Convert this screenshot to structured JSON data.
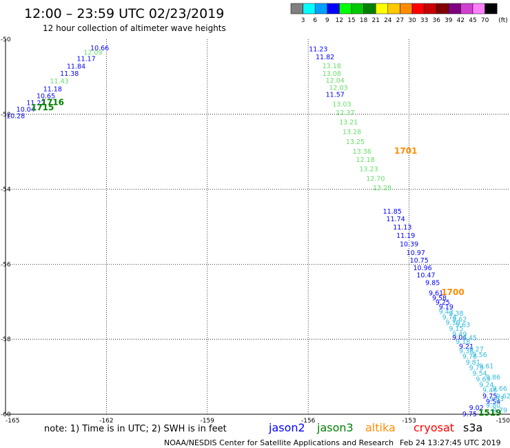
{
  "header": {
    "title": "12:00 – 23:59 UTC 02/23/2019",
    "subtitle": "12 hour collection of altimeter wave heights"
  },
  "legend": {
    "unit": "(ft)",
    "bins": [
      {
        "label": "3",
        "color": "#808080"
      },
      {
        "label": "6",
        "color": "#00ffff"
      },
      {
        "label": "9",
        "color": "#00a0ff"
      },
      {
        "label": "12",
        "color": "#0000ff"
      },
      {
        "label": "15",
        "color": "#00ff00"
      },
      {
        "label": "18",
        "color": "#00c800"
      },
      {
        "label": "21",
        "color": "#008000"
      },
      {
        "label": "24",
        "color": "#ffff00"
      },
      {
        "label": "27",
        "color": "#ffc800"
      },
      {
        "label": "30",
        "color": "#ff8c00"
      },
      {
        "label": "33",
        "color": "#ff0000"
      },
      {
        "label": "36",
        "color": "#c80000"
      },
      {
        "label": "39",
        "color": "#800000"
      },
      {
        "label": "42",
        "color": "#800080"
      },
      {
        "label": "45",
        "color": "#d040d0"
      },
      {
        "label": "70",
        "color": "#ff80ff"
      },
      {
        "label": "",
        "color": "#000000"
      }
    ]
  },
  "footer": {
    "note": "note: 1) Time is in UTC; 2) SWH is in feet",
    "satellites": [
      {
        "name": "jason2",
        "color": "#0000ff"
      },
      {
        "name": "jason3",
        "color": "#008000"
      },
      {
        "name": "altika",
        "color": "#ff8c00"
      },
      {
        "name": "cryosat",
        "color": "#ff0000"
      },
      {
        "name": "s3a",
        "color": "#000000"
      }
    ],
    "credit": "NOAA/NESDIS Center for Satellite Applications and Research",
    "timestamp": "Feb 24 13:27:45 UTC 2019"
  },
  "chart_data": {
    "type": "scatter",
    "xlim": [
      -165,
      -150
    ],
    "ylim": [
      -60,
      -50
    ],
    "xticks": [
      -165,
      -162,
      -159,
      -156,
      -153,
      -150
    ],
    "yticks": [
      -50,
      -52,
      -54,
      -56,
      -58,
      -60
    ],
    "grid": true,
    "series": [
      {
        "name": "jason2",
        "color": "#0000ff",
        "points": [
          {
            "x": -162.2,
            "y": -50.22,
            "label": "10.66"
          },
          {
            "x": -162.6,
            "y": -50.51,
            "label": "11.17"
          },
          {
            "x": -162.9,
            "y": -50.71,
            "label": "11.84"
          },
          {
            "x": -163.1,
            "y": -50.9,
            "label": "11.38"
          },
          {
            "x": -163.6,
            "y": -51.31,
            "label": "11.18"
          },
          {
            "x": -163.8,
            "y": -51.5,
            "label": "10.65"
          },
          {
            "x": -164.1,
            "y": -51.68,
            "label": "11.22"
          },
          {
            "x": -164.4,
            "y": -51.86,
            "label": "10.04"
          },
          {
            "x": -164.7,
            "y": -52.03,
            "label": "10.28"
          },
          {
            "x": -155.7,
            "y": -50.25,
            "label": "11.23"
          },
          {
            "x": -155.5,
            "y": -50.46,
            "label": "11.82"
          },
          {
            "x": -155.2,
            "y": -51.46,
            "label": "11.57"
          },
          {
            "x": -153.5,
            "y": -54.58,
            "label": "11.85"
          },
          {
            "x": -153.4,
            "y": -54.78,
            "label": "11.74"
          },
          {
            "x": -153.2,
            "y": -55.0,
            "label": "11.13"
          },
          {
            "x": -153.1,
            "y": -55.22,
            "label": "11.19"
          },
          {
            "x": -153.0,
            "y": -55.45,
            "label": "10.39"
          },
          {
            "x": -152.8,
            "y": -55.68,
            "label": "10.97"
          },
          {
            "x": -152.7,
            "y": -55.88,
            "label": "10.75"
          },
          {
            "x": -152.6,
            "y": -56.08,
            "label": "10.96"
          },
          {
            "x": -152.5,
            "y": -56.28,
            "label": "10.47"
          },
          {
            "x": -152.3,
            "y": -56.48,
            "label": "9.85"
          },
          {
            "x": -152.2,
            "y": -56.76,
            "label": "9.61"
          },
          {
            "x": -152.1,
            "y": -56.88,
            "label": "9.58"
          },
          {
            "x": -152.0,
            "y": -57.0,
            "label": "9.25"
          },
          {
            "x": -151.9,
            "y": -57.12,
            "label": "9.19"
          },
          {
            "x": -151.5,
            "y": -57.94,
            "label": "9.04"
          },
          {
            "x": -151.3,
            "y": -58.18,
            "label": "9.21"
          },
          {
            "x": -150.6,
            "y": -59.5,
            "label": "9.75"
          },
          {
            "x": -150.5,
            "y": -59.65,
            "label": "9.54"
          },
          {
            "x": -151.0,
            "y": -59.82,
            "label": "9.02"
          },
          {
            "x": -151.2,
            "y": -59.98,
            "label": "9.75"
          }
        ]
      },
      {
        "name": "jason3",
        "color": "#66dd66",
        "points": [
          {
            "x": -162.4,
            "y": -50.34,
            "label": "12.09"
          },
          {
            "x": -163.4,
            "y": -51.1,
            "label": "11.43"
          },
          {
            "x": -155.3,
            "y": -50.7,
            "label": "13.18"
          },
          {
            "x": -155.3,
            "y": -50.9,
            "label": "13.08"
          },
          {
            "x": -155.2,
            "y": -51.08,
            "label": "12.04"
          },
          {
            "x": -155.1,
            "y": -51.28,
            "label": "12.03"
          },
          {
            "x": -155.0,
            "y": -51.72,
            "label": "13.03"
          },
          {
            "x": -154.9,
            "y": -51.95,
            "label": "12.37"
          },
          {
            "x": -154.8,
            "y": -52.2,
            "label": "13.21"
          },
          {
            "x": -154.7,
            "y": -52.45,
            "label": "13.28"
          },
          {
            "x": -154.6,
            "y": -52.72,
            "label": "13.25"
          },
          {
            "x": -154.4,
            "y": -52.98,
            "label": "13.36"
          },
          {
            "x": -154.3,
            "y": -53.2,
            "label": "12.18"
          },
          {
            "x": -154.2,
            "y": -53.45,
            "label": "13.23"
          },
          {
            "x": -154.0,
            "y": -53.7,
            "label": "12.70"
          },
          {
            "x": -153.8,
            "y": -53.95,
            "label": "13.28"
          }
        ]
      },
      {
        "name": "jason3",
        "color": "#008000",
        "points": [
          {
            "x": -163.6,
            "y": -51.68,
            "label": "1716"
          },
          {
            "x": -163.9,
            "y": -51.82,
            "label": "1715"
          },
          {
            "x": -150.6,
            "y": -59.96,
            "label": "1519"
          }
        ]
      },
      {
        "name": "altika",
        "color": "#ff8c00",
        "points": [
          {
            "x": -153.1,
            "y": -52.98,
            "label": "1701"
          },
          {
            "x": -151.7,
            "y": -56.75,
            "label": "1700"
          }
        ]
      },
      {
        "name": "cryosat",
        "color": "#33bbdd",
        "points": [
          {
            "x": -151.9,
            "y": -57.25,
            "label": "9.42"
          },
          {
            "x": -151.8,
            "y": -57.4,
            "label": "9.74"
          },
          {
            "x": -151.7,
            "y": -57.55,
            "label": "9.30"
          },
          {
            "x": -151.6,
            "y": -57.7,
            "label": "9.15"
          },
          {
            "x": -151.5,
            "y": -57.85,
            "label": "9.49"
          },
          {
            "x": -151.4,
            "y": -58.05,
            "label": "9.18"
          },
          {
            "x": -151.3,
            "y": -58.3,
            "label": "9.38"
          },
          {
            "x": -151.2,
            "y": -58.45,
            "label": "9.76"
          },
          {
            "x": -151.1,
            "y": -58.6,
            "label": "9.81"
          },
          {
            "x": -151.0,
            "y": -58.75,
            "label": "9.79"
          },
          {
            "x": -150.9,
            "y": -58.9,
            "label": "9.54"
          },
          {
            "x": -150.8,
            "y": -59.05,
            "label": "9.69"
          },
          {
            "x": -150.7,
            "y": -59.2,
            "label": "9.24"
          },
          {
            "x": -150.6,
            "y": -59.35,
            "label": "9.46"
          },
          {
            "x": -150.4,
            "y": -59.58,
            "label": "9.83"
          },
          {
            "x": -150.5,
            "y": -59.75,
            "label": "9.80"
          },
          {
            "x": -150.3,
            "y": -59.88,
            "label": "9.79"
          },
          {
            "x": -151.6,
            "y": -57.3,
            "label": "9.38"
          },
          {
            "x": -151.5,
            "y": -57.45,
            "label": "9.62"
          },
          {
            "x": -151.4,
            "y": -57.6,
            "label": "9.63"
          },
          {
            "x": -151.2,
            "y": -57.95,
            "label": "9.45"
          },
          {
            "x": -151.0,
            "y": -58.25,
            "label": "9.27"
          },
          {
            "x": -150.9,
            "y": -58.4,
            "label": "9.56"
          },
          {
            "x": -150.7,
            "y": -58.7,
            "label": "9.61"
          },
          {
            "x": -150.5,
            "y": -59.0,
            "label": "9.86"
          },
          {
            "x": -150.3,
            "y": -59.3,
            "label": "9.66"
          },
          {
            "x": -150.2,
            "y": -59.5,
            "label": "9.62"
          }
        ]
      }
    ]
  }
}
